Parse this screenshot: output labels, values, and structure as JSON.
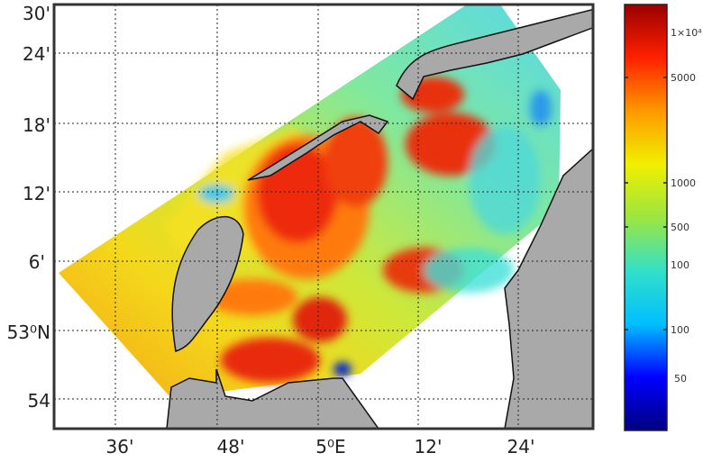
{
  "map": {
    "lon_ticks": [
      "36'",
      "48'",
      "5⁰E",
      "12'",
      "24'"
    ],
    "lat_ticks": [
      "30'",
      "24'",
      "18'",
      "12'",
      "6'",
      "53⁰N",
      "54"
    ],
    "grid": "dotted",
    "land_color": "#a9a9a9",
    "coast_color": "#111111"
  },
  "colorbar": {
    "labels": [
      "1×10⁴",
      "5000",
      "1000",
      "500",
      "100",
      "100",
      "50"
    ],
    "colormap": "jet",
    "scale": "log",
    "colors": [
      "#00007f",
      "#0000ff",
      "#00bfff",
      "#33e0c8",
      "#9be640",
      "#f0f000",
      "#ff9900",
      "#ff2000",
      "#9a0000"
    ]
  }
}
